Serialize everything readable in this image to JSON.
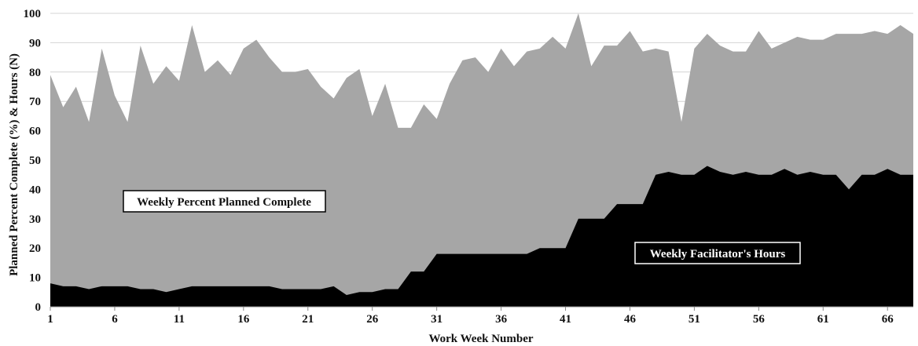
{
  "chart_data": {
    "type": "area",
    "title": "",
    "xlabel": "Work Week Number",
    "ylabel": "Planned Percent Complete (%) & Hours (N)",
    "xlim": [
      1,
      68
    ],
    "ylim": [
      0,
      100
    ],
    "x_ticks": [
      1,
      6,
      11,
      16,
      21,
      26,
      31,
      36,
      41,
      46,
      51,
      56,
      61,
      66
    ],
    "y_ticks": [
      0,
      10,
      20,
      30,
      40,
      50,
      60,
      70,
      80,
      90,
      100
    ],
    "grid": "horizontal",
    "stacked": false,
    "x": [
      1,
      2,
      3,
      4,
      5,
      6,
      7,
      8,
      9,
      10,
      11,
      12,
      13,
      14,
      15,
      16,
      17,
      18,
      19,
      20,
      21,
      22,
      23,
      24,
      25,
      26,
      27,
      28,
      29,
      30,
      31,
      32,
      33,
      34,
      35,
      36,
      37,
      38,
      39,
      40,
      41,
      42,
      43,
      44,
      45,
      46,
      47,
      48,
      49,
      50,
      51,
      52,
      53,
      54,
      55,
      56,
      57,
      58,
      59,
      60,
      61,
      62,
      63,
      64,
      65,
      66,
      67,
      68
    ],
    "series": [
      {
        "name": "Weekly Percent Planned Complete",
        "color": "#a6a6a6",
        "values": [
          79,
          68,
          75,
          63,
          88,
          72,
          63,
          89,
          76,
          82,
          77,
          96,
          80,
          84,
          79,
          88,
          91,
          85,
          80,
          80,
          81,
          75,
          71,
          78,
          81,
          65,
          76,
          61,
          61,
          69,
          64,
          76,
          84,
          85,
          80,
          88,
          82,
          87,
          88,
          92,
          88,
          100,
          82,
          89,
          89,
          94,
          87,
          88,
          87,
          63,
          88,
          93,
          89,
          87,
          87,
          94,
          88,
          90,
          92,
          91,
          91,
          93,
          93,
          93,
          94,
          93,
          96,
          93
        ]
      },
      {
        "name": "Weekly Facilitator's Hours",
        "color": "#000000",
        "values": [
          8,
          7,
          7,
          6,
          7,
          7,
          7,
          6,
          6,
          5,
          6,
          7,
          7,
          7,
          7,
          7,
          7,
          7,
          6,
          6,
          6,
          6,
          7,
          4,
          5,
          5,
          6,
          6,
          12,
          12,
          18,
          18,
          18,
          18,
          18,
          18,
          18,
          18,
          20,
          20,
          20,
          30,
          30,
          30,
          35,
          35,
          35,
          45,
          46,
          45,
          45,
          48,
          46,
          45,
          46,
          45,
          45,
          47,
          45,
          46,
          45,
          45,
          40,
          45,
          45,
          47,
          45,
          45
        ]
      }
    ],
    "annotations": [
      {
        "text": "Weekly Percent Planned Complete",
        "box_fill": "#ffffff",
        "text_color": "#111111"
      },
      {
        "text": "Weekly Facilitator's Hours",
        "box_fill": "#000000",
        "text_color": "#ffffff"
      }
    ]
  }
}
